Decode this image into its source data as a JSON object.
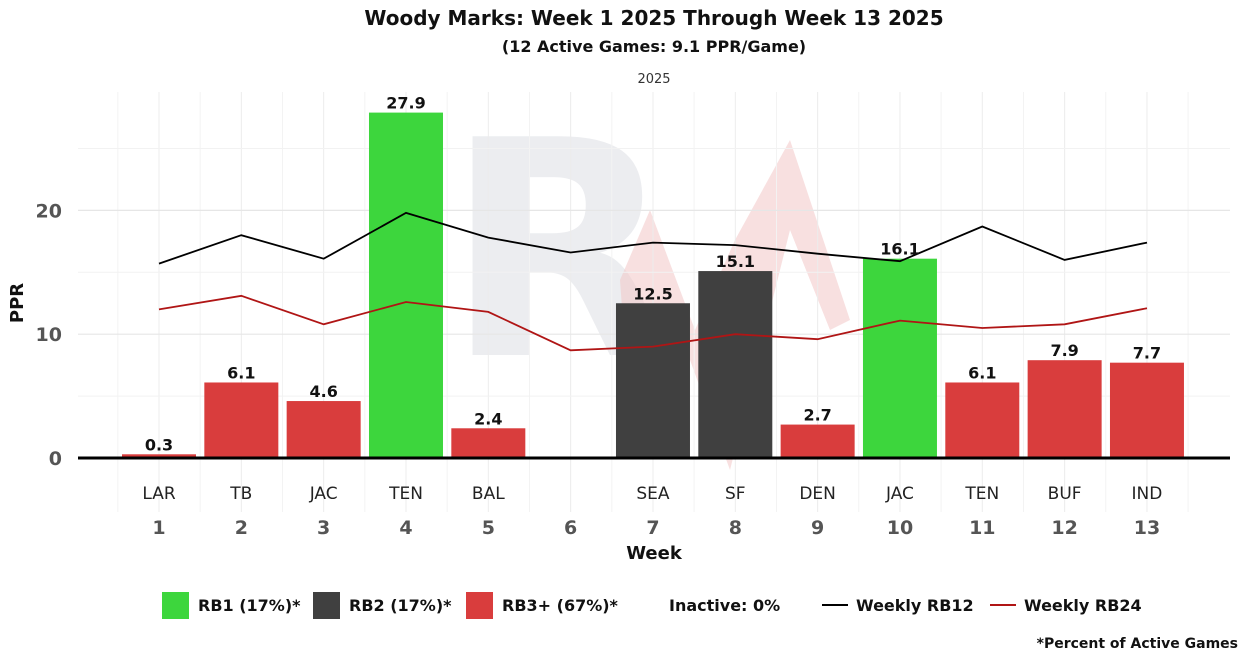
{
  "chart_data": {
    "type": "bar",
    "title": "Woody Marks: Week 1 2025 Through Week 13 2025",
    "subtitle": "(12 Active Games: 9.1 PPR/Game)",
    "facet_label": "2025",
    "xlabel": "Week",
    "ylabel": "PPR",
    "ylim": [
      0,
      28
    ],
    "yticks": [
      0,
      10,
      20
    ],
    "grid": true,
    "categories": [
      "1",
      "2",
      "3",
      "4",
      "5",
      "6",
      "7",
      "8",
      "9",
      "10",
      "11",
      "12",
      "13"
    ],
    "opponents": [
      "LAR",
      "TB",
      "JAC",
      "TEN",
      "BAL",
      "",
      "SEA",
      "SF",
      "DEN",
      "JAC",
      "TEN",
      "BUF",
      "IND"
    ],
    "values": [
      0.3,
      6.1,
      4.6,
      27.9,
      2.4,
      null,
      12.5,
      15.1,
      2.7,
      16.1,
      6.1,
      7.9,
      7.7
    ],
    "value_labels": [
      "0.3",
      "6.1",
      "4.6",
      "27.9",
      "2.4",
      "",
      "12.5",
      "15.1",
      "2.7",
      "16.1",
      "6.1",
      "7.9",
      "7.7"
    ],
    "tiers": [
      "RB3+",
      "RB3+",
      "RB3+",
      "RB1",
      "RB3+",
      null,
      "RB2",
      "RB2",
      "RB3+",
      "RB1",
      "RB3+",
      "RB3+",
      "RB3+"
    ],
    "tier_colors": {
      "RB1": "#3dd63d",
      "RB2": "#404040",
      "RB3+": "#d93d3d"
    },
    "series": [
      {
        "name": "Weekly RB12",
        "color": "#000000",
        "values": [
          15.7,
          18.0,
          16.1,
          19.8,
          17.8,
          16.6,
          17.4,
          17.2,
          16.5,
          15.9,
          18.7,
          16.0,
          17.4
        ]
      },
      {
        "name": "Weekly RB24",
        "color": "#b01515",
        "values": [
          12.0,
          13.1,
          10.8,
          12.6,
          11.8,
          8.7,
          9.0,
          10.0,
          9.6,
          11.1,
          10.5,
          10.8,
          12.1
        ]
      }
    ],
    "legend": {
      "placement": "bottom",
      "items": [
        {
          "label": "RB1 (17%)*",
          "kind": "box",
          "color": "#3dd63d"
        },
        {
          "label": "RB2 (17%)*",
          "kind": "box",
          "color": "#404040"
        },
        {
          "label": "RB3+ (67%)*",
          "kind": "box",
          "color": "#d93d3d"
        },
        {
          "label": "Inactive: 0%",
          "kind": "text",
          "color": ""
        },
        {
          "label": "Weekly RB12",
          "kind": "line",
          "color": "#000000"
        },
        {
          "label": "Weekly RB24",
          "kind": "line",
          "color": "#b01515"
        }
      ]
    },
    "footnote": "*Percent of Active Games"
  }
}
